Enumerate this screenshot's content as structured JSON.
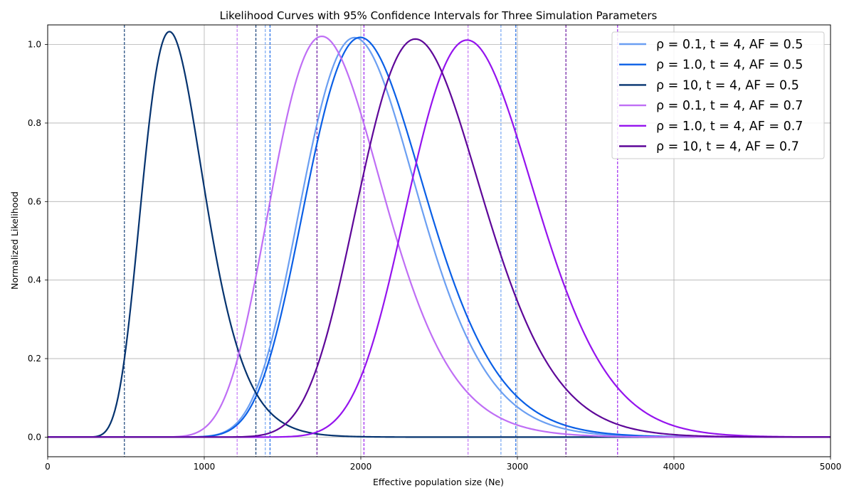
{
  "chart_data": {
    "type": "line",
    "title": "Likelihood Curves with 95% Confidence Intervals for Three Simulation Parameters",
    "xlabel": "Effective population size (Ne)",
    "ylabel": "Normalized Likelihood",
    "xlim": [
      0,
      5000
    ],
    "ylim": [
      -0.05,
      1.05
    ],
    "xticks": [
      0,
      1000,
      2000,
      3000,
      4000,
      5000
    ],
    "yticks": [
      0.0,
      0.2,
      0.4,
      0.6,
      0.8,
      1.0
    ],
    "grid": true,
    "legend_position": "top-right",
    "series": [
      {
        "name": "ρ = 0.1, t = 4, AF = 0.5",
        "color": "#6b9ff2",
        "peak": 2030,
        "ci": [
          1390,
          2895
        ]
      },
      {
        "name": "ρ = 1.0, t = 4, AF = 0.5",
        "color": "#0a5fe6",
        "peak": 2070,
        "ci": [
          1420,
          2990
        ]
      },
      {
        "name": "ρ = 10, t = 4, AF = 0.5",
        "color": "#05336f",
        "peak": 830,
        "ci": [
          490,
          1330
        ]
      },
      {
        "name": "ρ = 0.1, t = 4, AF = 0.7",
        "color": "#bf6ef5",
        "peak": 1825,
        "ci": [
          1210,
          2685
        ]
      },
      {
        "name": "ρ = 1.0, t = 4, AF = 0.7",
        "color": "#9513ee",
        "peak": 2740,
        "ci": [
          2020,
          3640
        ]
      },
      {
        "name": "ρ = 10, t = 4, AF = 0.7",
        "color": "#5e0799",
        "peak": 2415,
        "ci": [
          1720,
          3310
        ]
      }
    ]
  }
}
